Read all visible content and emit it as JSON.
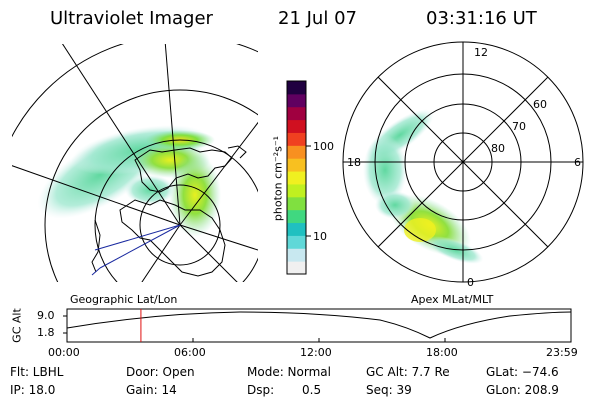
{
  "header": {
    "title": "Ultraviolet Imager",
    "date": "21 Jul 07",
    "time": "03:31:16 UT"
  },
  "left_panel": {
    "label": "Geographic Lat/Lon"
  },
  "right_panel": {
    "label": "Apex MLat/MLT",
    "mlt_labels": [
      "12",
      "18",
      "6",
      "0"
    ],
    "lat_labels": [
      "60",
      "70",
      "80"
    ]
  },
  "colorbar": {
    "label": "photon cm⁻²s⁻¹",
    "ticks": [
      {
        "value": 100,
        "label": "100"
      },
      {
        "value": 10,
        "label": "10"
      }
    ],
    "colors": [
      "#f0f0f0",
      "#c8e8f0",
      "#60d8d8",
      "#20c0c0",
      "#40d880",
      "#80e040",
      "#c0f020",
      "#f0f020",
      "#f8c020",
      "#f89020",
      "#f04020",
      "#d01020",
      "#a00040",
      "#600060",
      "#200040"
    ]
  },
  "timeline": {
    "ylabel": "GC Alt",
    "y_ticks": [
      "9.0",
      "1.8"
    ],
    "x_ticks": [
      "00:00",
      "06:00",
      "12:00",
      "18:00",
      "23:59"
    ],
    "marker_time_hours": 3.52,
    "range_hours": [
      0,
      24
    ]
  },
  "info": {
    "flt": "Flt: LBHL",
    "ip": "IP: 18.0",
    "door": "Door: Open",
    "gain": "Gain: 14",
    "mode": "Mode: Normal",
    "dsp_label": "Dsp:",
    "dsp_value": "0.5",
    "gcalt": "GC Alt: 7.7 Re",
    "seq": "Seq: 39",
    "glat": "GLat: −74.6",
    "glon": "GLon: 208.9"
  }
}
